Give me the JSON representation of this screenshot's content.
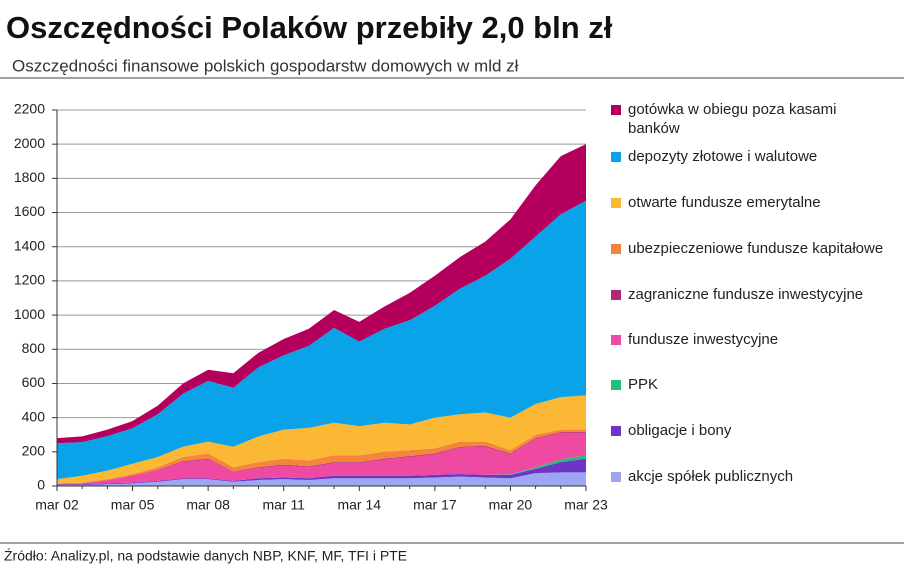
{
  "chart_data": {
    "type": "stacked_area",
    "title": "Oszczędności Polaków przebiły 2,0 bln zł",
    "subtitle": "Oszczędności finansowe polskich gospodarstw domowych w mld zł",
    "source": "Źródło: Analizy.pl, na podstawie danych NBP, KNF, MF, TFI i PTE",
    "categories": [
      "mar 02",
      null,
      null,
      "mar 05",
      null,
      null,
      "mar 08",
      null,
      null,
      "mar 11",
      null,
      null,
      "mar 14",
      null,
      null,
      "mar 17",
      null,
      null,
      "mar 20",
      null,
      null,
      "mar 23"
    ],
    "ylim": [
      0,
      2200
    ],
    "yticks": [
      0,
      200,
      400,
      600,
      800,
      1000,
      1200,
      1400,
      1600,
      1800,
      2000,
      2200
    ],
    "grid": true,
    "series": [
      {
        "name": "akcje spółek publicznych",
        "color": "#9ea6f2",
        "values": [
          5,
          5,
          10,
          15,
          25,
          40,
          40,
          25,
          35,
          40,
          35,
          45,
          45,
          45,
          45,
          50,
          55,
          50,
          45,
          75,
          80,
          80
        ]
      },
      {
        "name": "obligacje i bony",
        "color": "#6c35c6",
        "values": [
          5,
          5,
          5,
          5,
          5,
          5,
          5,
          5,
          10,
          10,
          10,
          15,
          15,
          15,
          15,
          15,
          15,
          15,
          20,
          25,
          60,
          80
        ]
      },
      {
        "name": "PPK",
        "color": "#1ec07c",
        "values": [
          0,
          0,
          0,
          0,
          0,
          0,
          0,
          0,
          0,
          0,
          0,
          0,
          0,
          0,
          0,
          0,
          0,
          0,
          3,
          8,
          15,
          20
        ]
      },
      {
        "name": "fundusze inwestycyjne",
        "color": "#ee4aa2",
        "values": [
          3,
          7,
          20,
          40,
          62,
          95,
          110,
          52,
          60,
          70,
          65,
          75,
          75,
          95,
          110,
          120,
          155,
          165,
          117,
          167,
          155,
          130
        ]
      },
      {
        "name": "zagraniczne fundusze inwestycyjne",
        "color": "#b2277c",
        "values": [
          0,
          0,
          0,
          2,
          3,
          5,
          5,
          3,
          5,
          5,
          5,
          5,
          5,
          5,
          5,
          5,
          5,
          5,
          5,
          5,
          5,
          5
        ]
      },
      {
        "name": "ubezpieczeniowe fundusze kapitałowe",
        "color": "#f6843a",
        "values": [
          2,
          3,
          5,
          8,
          15,
          25,
          30,
          25,
          30,
          35,
          35,
          40,
          40,
          40,
          35,
          30,
          30,
          25,
          20,
          20,
          15,
          15
        ]
      },
      {
        "name": "otwarte fundusze emerytalne",
        "color": "#fbb834",
        "values": [
          25,
          40,
          50,
          60,
          60,
          60,
          70,
          120,
          150,
          170,
          190,
          190,
          170,
          170,
          150,
          180,
          160,
          170,
          190,
          180,
          190,
          200
        ]
      },
      {
        "name": "depozyty złotowe i walutowe",
        "color": "#0aa3ea",
        "values": [
          210,
          197,
          202,
          208,
          250,
          310,
          355,
          345,
          405,
          435,
          480,
          555,
          495,
          550,
          610,
          655,
          735,
          800,
          930,
          980,
          1070,
          1140
        ]
      },
      {
        "name": "gotówka w obiegu poza kasami banków",
        "color": "#b4005c",
        "values": [
          30,
          33,
          38,
          42,
          50,
          60,
          65,
          85,
          85,
          95,
          100,
          105,
          115,
          130,
          160,
          175,
          185,
          200,
          230,
          300,
          340,
          330
        ]
      }
    ]
  }
}
